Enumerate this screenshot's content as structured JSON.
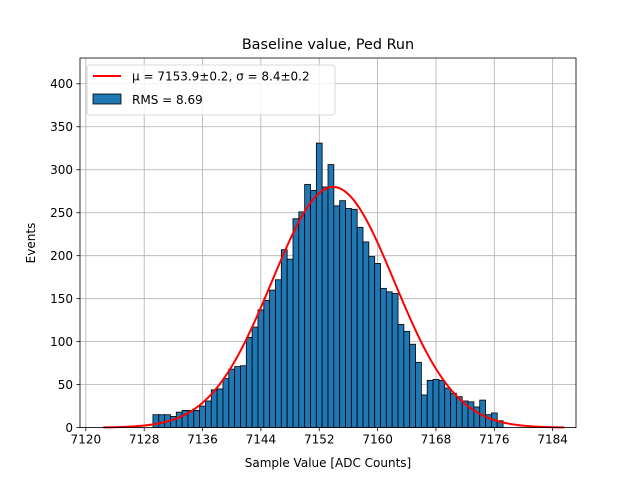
{
  "chart_data": {
    "type": "bar",
    "title": "Baseline value, Ped Run",
    "xlabel": "Sample Value [ADC Counts]",
    "ylabel": "Events",
    "xlim": [
      7119.2,
      7187.2
    ],
    "ylim": [
      0,
      430
    ],
    "xticks": [
      7120,
      7128,
      7136,
      7144,
      7152,
      7160,
      7168,
      7176,
      7184
    ],
    "yticks": [
      0,
      50,
      100,
      150,
      200,
      250,
      300,
      350,
      400
    ],
    "grid": true,
    "legend_placement": "upper-left",
    "bin_width": 0.8,
    "histogram": {
      "name": "RMS = 8.69",
      "color": "#1f77b4",
      "bins": [
        {
          "x": 7129.2,
          "y": 15
        },
        {
          "x": 7130.0,
          "y": 15
        },
        {
          "x": 7130.8,
          "y": 15
        },
        {
          "x": 7131.6,
          "y": 13
        },
        {
          "x": 7132.4,
          "y": 18
        },
        {
          "x": 7133.2,
          "y": 20
        },
        {
          "x": 7134.0,
          "y": 20
        },
        {
          "x": 7134.8,
          "y": 20
        },
        {
          "x": 7135.6,
          "y": 25
        },
        {
          "x": 7136.4,
          "y": 31
        },
        {
          "x": 7137.2,
          "y": 44
        },
        {
          "x": 7138.0,
          "y": 45
        },
        {
          "x": 7138.8,
          "y": 57
        },
        {
          "x": 7139.6,
          "y": 68
        },
        {
          "x": 7140.4,
          "y": 71
        },
        {
          "x": 7141.2,
          "y": 72
        },
        {
          "x": 7142.0,
          "y": 105
        },
        {
          "x": 7142.8,
          "y": 117
        },
        {
          "x": 7143.6,
          "y": 137
        },
        {
          "x": 7144.4,
          "y": 148
        },
        {
          "x": 7145.2,
          "y": 160
        },
        {
          "x": 7146.0,
          "y": 172
        },
        {
          "x": 7146.8,
          "y": 207
        },
        {
          "x": 7147.6,
          "y": 196
        },
        {
          "x": 7148.4,
          "y": 243
        },
        {
          "x": 7149.2,
          "y": 251
        },
        {
          "x": 7150.0,
          "y": 283
        },
        {
          "x": 7150.8,
          "y": 276
        },
        {
          "x": 7151.6,
          "y": 331
        },
        {
          "x": 7152.4,
          "y": 280
        },
        {
          "x": 7153.2,
          "y": 306
        },
        {
          "x": 7154.0,
          "y": 258
        },
        {
          "x": 7154.8,
          "y": 264
        },
        {
          "x": 7155.6,
          "y": 255
        },
        {
          "x": 7156.4,
          "y": 254
        },
        {
          "x": 7157.2,
          "y": 233
        },
        {
          "x": 7158.0,
          "y": 216
        },
        {
          "x": 7158.8,
          "y": 199
        },
        {
          "x": 7159.6,
          "y": 191
        },
        {
          "x": 7160.4,
          "y": 162
        },
        {
          "x": 7161.2,
          "y": 158
        },
        {
          "x": 7162.0,
          "y": 156
        },
        {
          "x": 7162.8,
          "y": 120
        },
        {
          "x": 7163.6,
          "y": 112
        },
        {
          "x": 7164.4,
          "y": 97
        },
        {
          "x": 7165.2,
          "y": 76
        },
        {
          "x": 7166.0,
          "y": 38
        },
        {
          "x": 7166.8,
          "y": 55
        },
        {
          "x": 7167.6,
          "y": 56
        },
        {
          "x": 7168.4,
          "y": 55
        },
        {
          "x": 7169.2,
          "y": 46
        },
        {
          "x": 7170.0,
          "y": 40
        },
        {
          "x": 7170.8,
          "y": 36
        },
        {
          "x": 7171.6,
          "y": 31
        },
        {
          "x": 7172.4,
          "y": 30
        },
        {
          "x": 7173.2,
          "y": 24
        },
        {
          "x": 7174.0,
          "y": 32
        },
        {
          "x": 7174.8,
          "y": 15
        },
        {
          "x": 7175.6,
          "y": 17
        },
        {
          "x": 7176.4,
          "y": 8
        }
      ]
    },
    "fit": {
      "name": "μ = 7153.9±0.2, σ = 8.4±0.2",
      "color": "#ff0000",
      "function": "gaussian",
      "mu": 7153.9,
      "sigma": 8.4,
      "amplitude": 280,
      "x_range": [
        7122.4,
        7185.6
      ]
    }
  }
}
